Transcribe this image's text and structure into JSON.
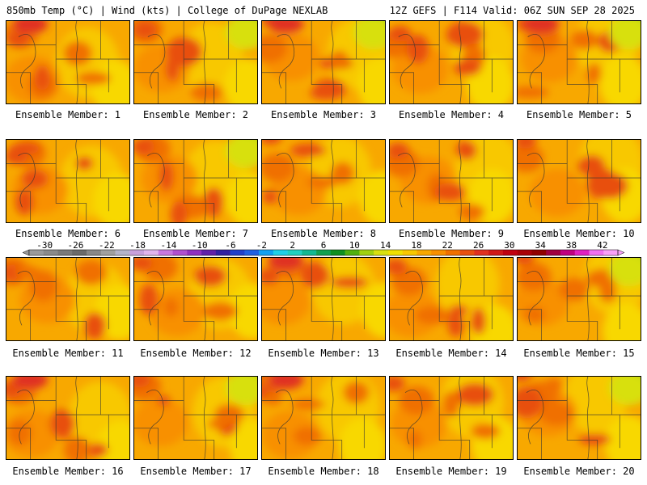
{
  "header": {
    "left": "850mb Temp (°C) | Wind (kts) | College of DuPage NEXLAB",
    "right": "12Z GEFS | F114 Valid: 06Z SUN SEP 28 2025"
  },
  "members": [
    {
      "label": "Ensemble Member: 1"
    },
    {
      "label": "Ensemble Member: 2"
    },
    {
      "label": "Ensemble Member: 3"
    },
    {
      "label": "Ensemble Member: 4"
    },
    {
      "label": "Ensemble Member: 5"
    },
    {
      "label": "Ensemble Member: 6"
    },
    {
      "label": "Ensemble Member: 7"
    },
    {
      "label": "Ensemble Member: 8"
    },
    {
      "label": "Ensemble Member: 9"
    },
    {
      "label": "Ensemble Member: 10"
    },
    {
      "label": "Ensemble Member: 11"
    },
    {
      "label": "Ensemble Member: 12"
    },
    {
      "label": "Ensemble Member: 13"
    },
    {
      "label": "Ensemble Member: 14"
    },
    {
      "label": "Ensemble Member: 15"
    },
    {
      "label": "Ensemble Member: 16"
    },
    {
      "label": "Ensemble Member: 17"
    },
    {
      "label": "Ensemble Member: 18"
    },
    {
      "label": "Ensemble Member: 19"
    },
    {
      "label": "Ensemble Member: 20"
    }
  ],
  "colorbar": {
    "tick_labels": [
      "-30",
      "-26",
      "-22",
      "-18",
      "-14",
      "-10",
      "-6",
      "-2",
      "2",
      "6",
      "10",
      "14",
      "18",
      "22",
      "26",
      "30",
      "34",
      "38",
      "42"
    ],
    "colors": [
      "#9a9a9a",
      "#8a8a8a",
      "#7a7a7a",
      "#6a6a6a",
      "#888888",
      "#a0a0a0",
      "#b4b4c8",
      "#c8a0dc",
      "#e0b4ec",
      "#c878e0",
      "#b050d0",
      "#9030c0",
      "#6020a8",
      "#3020a0",
      "#2040c8",
      "#2060e0",
      "#10a0f0",
      "#20d0e8",
      "#20d0c0",
      "#10b890",
      "#10a050",
      "#109020",
      "#50b010",
      "#a0d010",
      "#d8e010",
      "#f0e000",
      "#f8c800",
      "#f8a800",
      "#f89000",
      "#f07000",
      "#e85010",
      "#e03020",
      "#d01818",
      "#c00010",
      "#a80008",
      "#900000",
      "#a00040",
      "#c00080",
      "#e020c0",
      "#f070f0",
      "#f8a0f8"
    ],
    "min": -32,
    "max": 44
  }
}
